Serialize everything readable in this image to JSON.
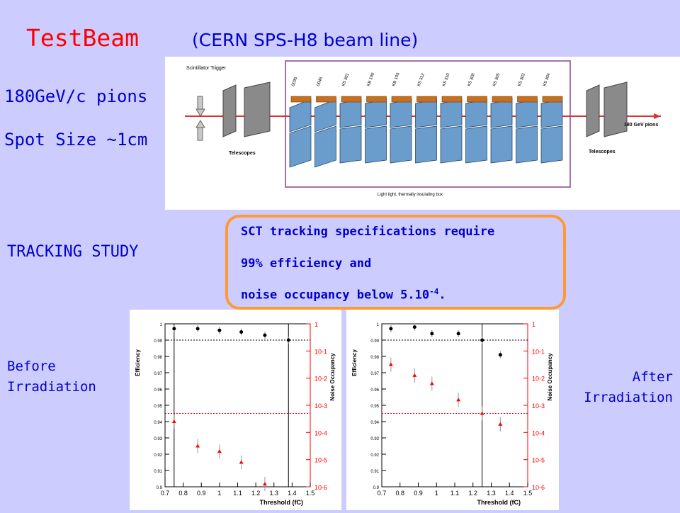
{
  "slide": {
    "title": "TestBeam",
    "subtitle": "(CERN SPS-H8 beam line)",
    "beam": {
      "energy": "180GeV/c pions",
      "spot": "Spot Size ~1cm"
    },
    "tracking_label": "TRACKING STUDY",
    "spec": {
      "line1": "SCT tracking specifications require",
      "line2": "99% efficiency and",
      "line3_prefix": "noise occupancy below 5.10",
      "line3_exp": "-4",
      "line3_suffix": "."
    },
    "before_label": [
      "Before",
      "Irradiation"
    ],
    "after_label": [
      "After",
      "Irradiation"
    ]
  },
  "diagram": {
    "scintillator": "Scintillator Trigger",
    "telescopes": "Telescopes",
    "box": "Light tight, thermally insulating box",
    "beam": "180 GeV pions",
    "modules": [
      "0035",
      "0046",
      "K5 301",
      "KB 100",
      "KB 103",
      "K5 312",
      "K5 310",
      "K5 308",
      "K5 305",
      "K5 302",
      "K5 304"
    ]
  },
  "chart_data": [
    {
      "type": "scatter",
      "xlabel": "Threshold (fC)",
      "ylabel": "Efficiency",
      "y2label": "Noise Occupancy",
      "x_ticks": [
        "0.7",
        "0.8",
        "0.9",
        "1",
        "1.1",
        "1.2",
        "1.3",
        "1.4",
        "1.5"
      ],
      "y_ticks": [
        "0.9",
        "0.91",
        "0.92",
        "0.93",
        "0.94",
        "0.95",
        "0.96",
        "0.97",
        "0.98",
        "0.99",
        "1"
      ],
      "y2_ticks": [
        "10^-6",
        "10^-5",
        "10^-4",
        "10^-3",
        "10^-2",
        "10^-1",
        "1"
      ],
      "xlim": [
        0.7,
        1.5
      ],
      "ylim": [
        0.9,
        1.0
      ],
      "y2_log_range": [
        -6,
        0
      ],
      "series": [
        {
          "values": [
            [
              0.75,
              0.997
            ],
            [
              0.88,
              0.997
            ],
            [
              1.0,
              0.996
            ],
            [
              1.12,
              0.995
            ],
            [
              1.25,
              0.993
            ],
            [
              1.38,
              0.99
            ]
          ]
        },
        {
          "values": [
            [
              0.75,
              -3.6
            ],
            [
              0.88,
              -4.5
            ],
            [
              1.0,
              -4.7
            ],
            [
              1.12,
              -5.1
            ],
            [
              1.25,
              -5.9
            ]
          ]
        }
      ],
      "vlines": [
        0.75,
        1.38
      ],
      "hline_eff": 0.99,
      "hline_occ_log": -3.3
    },
    {
      "type": "scatter",
      "xlabel": "Threshold (fC)",
      "ylabel": "Efficiency",
      "y2label": "Noise Occupancy",
      "x_ticks": [
        "0.7",
        "0.8",
        "0.9",
        "1",
        "1.1",
        "1.2",
        "1.3",
        "1.4",
        "1.5"
      ],
      "y_ticks": [
        "0.9",
        "0.91",
        "0.92",
        "0.93",
        "0.94",
        "0.95",
        "0.96",
        "0.97",
        "0.98",
        "0.99",
        "1"
      ],
      "y2_ticks": [
        "10^-6",
        "10^-5",
        "10^-4",
        "10^-3",
        "10^-2",
        "10^-1",
        "1"
      ],
      "xlim": [
        0.7,
        1.5
      ],
      "ylim": [
        0.9,
        1.0
      ],
      "y2_log_range": [
        -6,
        0
      ],
      "series": [
        {
          "values": [
            [
              0.75,
              0.997
            ],
            [
              0.88,
              0.998
            ],
            [
              0.975,
              0.994
            ],
            [
              1.12,
              0.994
            ],
            [
              1.25,
              0.99
            ],
            [
              1.35,
              0.981
            ]
          ]
        },
        {
          "values": [
            [
              0.75,
              -1.5
            ],
            [
              0.88,
              -1.9
            ],
            [
              0.975,
              -2.2
            ],
            [
              1.12,
              -2.8
            ],
            [
              1.25,
              -3.3
            ],
            [
              1.35,
              -3.7
            ]
          ]
        }
      ],
      "vlines": [
        1.25
      ],
      "hline_eff": 0.99,
      "hline_occ_log": -3.3
    }
  ]
}
